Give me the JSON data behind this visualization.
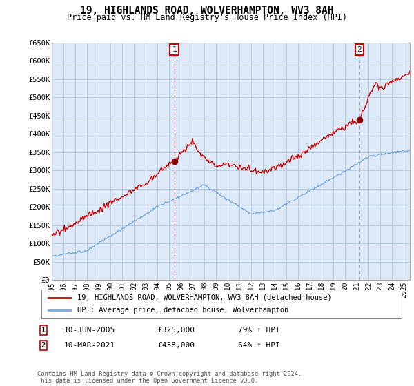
{
  "title": "19, HIGHLANDS ROAD, WOLVERHAMPTON, WV3 8AH",
  "subtitle": "Price paid vs. HM Land Registry's House Price Index (HPI)",
  "ylabel_ticks": [
    "£0",
    "£50K",
    "£100K",
    "£150K",
    "£200K",
    "£250K",
    "£300K",
    "£350K",
    "£400K",
    "£450K",
    "£500K",
    "£550K",
    "£600K",
    "£650K"
  ],
  "ylim": [
    0,
    650000
  ],
  "ytick_vals": [
    0,
    50000,
    100000,
    150000,
    200000,
    250000,
    300000,
    350000,
    400000,
    450000,
    500000,
    550000,
    600000,
    650000
  ],
  "xlim_start": 1995.0,
  "xlim_end": 2025.5,
  "marker1_x": 2005.44,
  "marker1_y": 325000,
  "marker2_x": 2021.19,
  "marker2_y": 438000,
  "marker1_label": "1",
  "marker2_label": "2",
  "sale1_date": "10-JUN-2005",
  "sale1_price": "£325,000",
  "sale1_hpi": "79% ↑ HPI",
  "sale2_date": "10-MAR-2021",
  "sale2_price": "£438,000",
  "sale2_hpi": "64% ↑ HPI",
  "legend_label1": "19, HIGHLANDS ROAD, WOLVERHAMPTON, WV3 8AH (detached house)",
  "legend_label2": "HPI: Average price, detached house, Wolverhampton",
  "footnote": "Contains HM Land Registry data © Crown copyright and database right 2024.\nThis data is licensed under the Open Government Licence v3.0.",
  "line1_color": "#cc0000",
  "line2_color": "#7aaadd",
  "bg_color": "#dce8f5",
  "background_color": "#ffffff",
  "grid_color": "#b0c8e0"
}
